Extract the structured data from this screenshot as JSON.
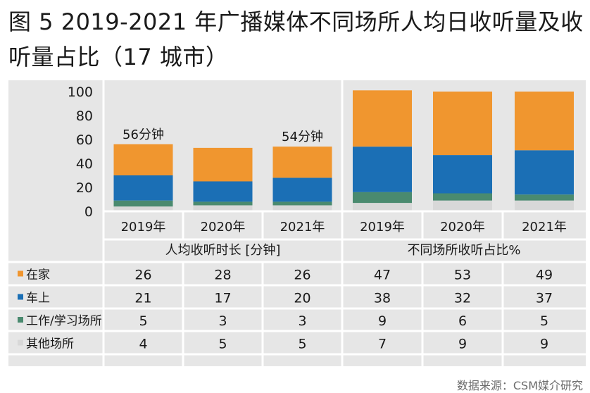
{
  "figure_title": "图 5 2019-2021 年广播媒体不同场所人均日收听量及收听量占比（17 城市）",
  "source": "数据来源：CSM媒介研究",
  "colors": {
    "home": "#f0962f",
    "car": "#1b6fb5",
    "work": "#4a8a6f",
    "other": "#d8d8d8",
    "grid": "#ffffff",
    "panel": "#e6e6e6"
  },
  "chart_data": {
    "type": "bar",
    "stacked": true,
    "y_ticks": [
      "100",
      "80",
      "60",
      "40",
      "20",
      "0"
    ],
    "ylim": [
      0,
      100
    ],
    "groups": [
      {
        "label": "人均收听时长 [分钟]",
        "categories": [
          "2019年",
          "2020年",
          "2021年"
        ]
      },
      {
        "label": "不同场所收听占比%",
        "categories": [
          "2019年",
          "2020年",
          "2021年"
        ]
      }
    ],
    "annotations": [
      {
        "bar_index": 0,
        "text": "56分钟"
      },
      {
        "bar_index": 2,
        "text": "54分钟"
      }
    ],
    "series": [
      {
        "name": "在家",
        "color_key": "home",
        "values": [
          26,
          28,
          26,
          47,
          53,
          49
        ],
        "labels": [
          "26",
          "28",
          "26",
          "47",
          "53",
          "49"
        ]
      },
      {
        "name": "车上",
        "color_key": "car",
        "values": [
          21,
          17,
          20,
          38,
          32,
          37
        ],
        "labels": [
          "21",
          "17",
          "20",
          "38",
          "32",
          "37"
        ]
      },
      {
        "name": "工作/学习场所",
        "color_key": "work",
        "values": [
          5,
          3,
          3,
          9,
          6,
          5
        ],
        "labels": [
          "5",
          "3",
          "3",
          "9",
          "6",
          "5"
        ]
      },
      {
        "name": "其他场所",
        "color_key": "other",
        "values": [
          4,
          5,
          5,
          7,
          9,
          9
        ],
        "labels": [
          "4",
          "5",
          "5",
          "7",
          "9",
          "9"
        ]
      }
    ]
  }
}
